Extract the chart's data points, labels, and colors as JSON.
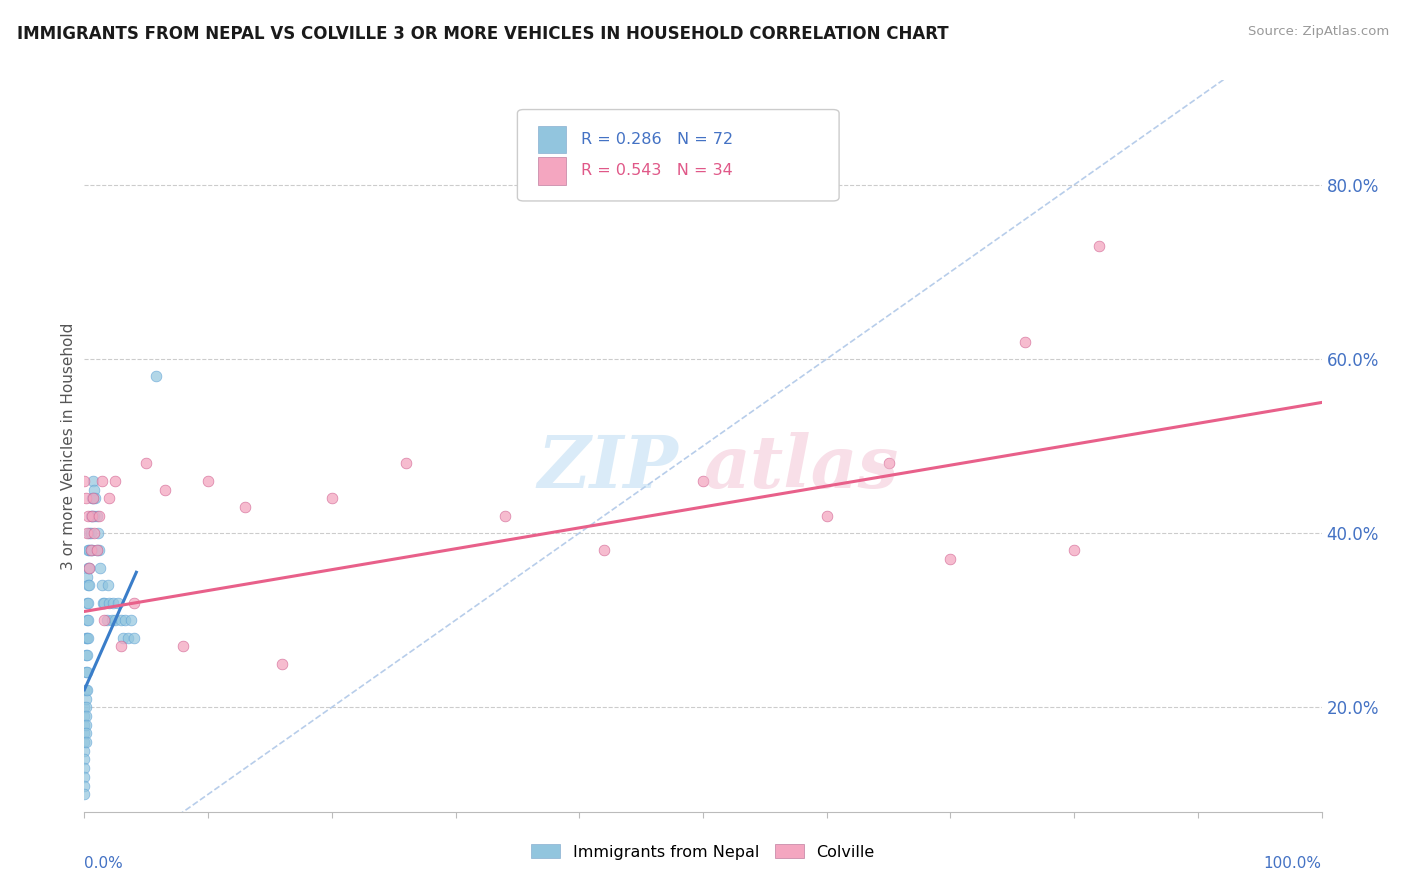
{
  "title": "IMMIGRANTS FROM NEPAL VS COLVILLE 3 OR MORE VEHICLES IN HOUSEHOLD CORRELATION CHART",
  "source": "Source: ZipAtlas.com",
  "ylabel": "3 or more Vehicles in Household",
  "legend_blue_label": "Immigrants from Nepal",
  "legend_pink_label": "Colville",
  "R_blue": 0.286,
  "N_blue": 72,
  "R_pink": 0.543,
  "N_pink": 34,
  "blue_color": "#92c5de",
  "pink_color": "#f4a6c0",
  "blue_line_color": "#3a7dc9",
  "pink_line_color": "#e8608a",
  "diag_line_color": "#b0c8e8",
  "ytick_vals": [
    0.2,
    0.4,
    0.6,
    0.8
  ],
  "xmin": 0.0,
  "xmax": 1.0,
  "ymin": 0.08,
  "ymax": 0.92,
  "blue_scatter_x": [
    0.0,
    0.0,
    0.0,
    0.0,
    0.0,
    0.0,
    0.0,
    0.0,
    0.0,
    0.0,
    0.0,
    0.0,
    0.001,
    0.001,
    0.001,
    0.001,
    0.001,
    0.001,
    0.001,
    0.001,
    0.001,
    0.001,
    0.002,
    0.002,
    0.002,
    0.002,
    0.002,
    0.002,
    0.002,
    0.003,
    0.003,
    0.003,
    0.003,
    0.003,
    0.003,
    0.004,
    0.004,
    0.004,
    0.004,
    0.005,
    0.005,
    0.005,
    0.006,
    0.006,
    0.006,
    0.007,
    0.007,
    0.008,
    0.008,
    0.009,
    0.01,
    0.01,
    0.011,
    0.012,
    0.013,
    0.014,
    0.015,
    0.016,
    0.018,
    0.019,
    0.02,
    0.022,
    0.023,
    0.025,
    0.027,
    0.03,
    0.031,
    0.033,
    0.035,
    0.038,
    0.04,
    0.058
  ],
  "blue_scatter_y": [
    0.22,
    0.2,
    0.19,
    0.18,
    0.17,
    0.16,
    0.15,
    0.14,
    0.13,
    0.12,
    0.11,
    0.1,
    0.28,
    0.26,
    0.24,
    0.22,
    0.21,
    0.2,
    0.19,
    0.18,
    0.17,
    0.16,
    0.35,
    0.32,
    0.3,
    0.28,
    0.26,
    0.24,
    0.22,
    0.38,
    0.36,
    0.34,
    0.32,
    0.3,
    0.28,
    0.4,
    0.38,
    0.36,
    0.34,
    0.42,
    0.4,
    0.38,
    0.44,
    0.42,
    0.38,
    0.46,
    0.44,
    0.45,
    0.42,
    0.44,
    0.42,
    0.38,
    0.4,
    0.38,
    0.36,
    0.34,
    0.32,
    0.32,
    0.3,
    0.34,
    0.32,
    0.3,
    0.32,
    0.3,
    0.32,
    0.3,
    0.28,
    0.3,
    0.28,
    0.3,
    0.28,
    0.58
  ],
  "pink_scatter_x": [
    0.0,
    0.001,
    0.002,
    0.003,
    0.004,
    0.005,
    0.006,
    0.007,
    0.008,
    0.01,
    0.012,
    0.014,
    0.016,
    0.02,
    0.025,
    0.03,
    0.04,
    0.05,
    0.065,
    0.08,
    0.1,
    0.13,
    0.16,
    0.2,
    0.26,
    0.34,
    0.42,
    0.5,
    0.6,
    0.65,
    0.7,
    0.76,
    0.8,
    0.82
  ],
  "pink_scatter_y": [
    0.46,
    0.44,
    0.4,
    0.42,
    0.36,
    0.38,
    0.42,
    0.44,
    0.4,
    0.38,
    0.42,
    0.46,
    0.3,
    0.44,
    0.46,
    0.27,
    0.32,
    0.48,
    0.45,
    0.27,
    0.46,
    0.43,
    0.25,
    0.44,
    0.48,
    0.42,
    0.38,
    0.46,
    0.42,
    0.48,
    0.37,
    0.62,
    0.38,
    0.73
  ],
  "blue_line_x": [
    0.0,
    0.042
  ],
  "blue_line_y": [
    0.22,
    0.355
  ],
  "pink_line_x": [
    0.0,
    1.0
  ],
  "pink_line_y": [
    0.31,
    0.55
  ]
}
